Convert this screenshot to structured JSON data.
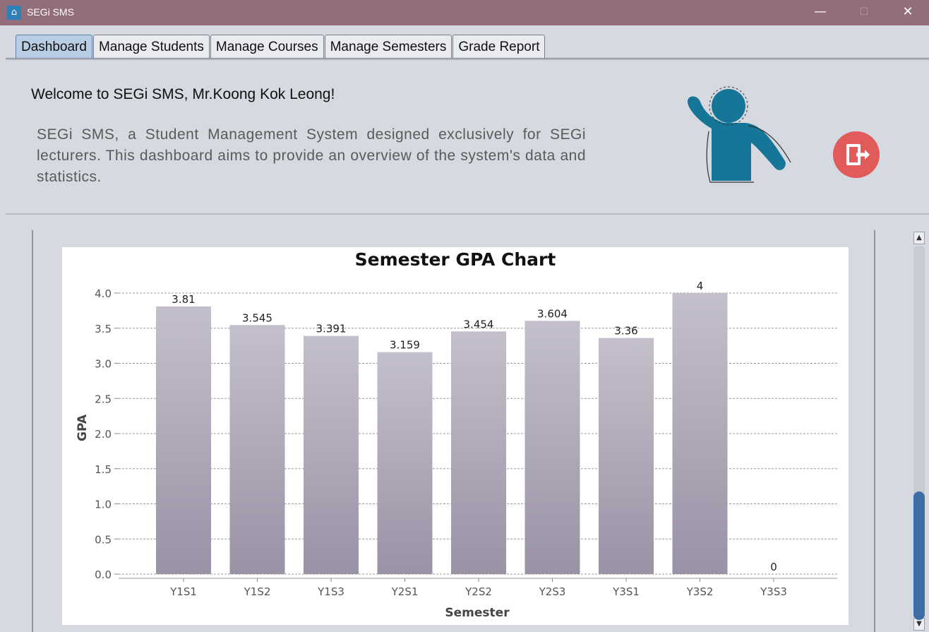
{
  "window": {
    "title": "SEGi SMS",
    "minimize": "—",
    "maximize": "☐",
    "close": "✕"
  },
  "tabs": [
    {
      "label": "Dashboard",
      "active": true
    },
    {
      "label": "Manage Students",
      "active": false
    },
    {
      "label": "Manage Courses",
      "active": false
    },
    {
      "label": "Manage Semesters",
      "active": false
    },
    {
      "label": "Grade Report",
      "active": false
    }
  ],
  "dashboard": {
    "welcome": "Welcome to SEGi SMS, Mr.Koong Kok Leong!",
    "description": "SEGi SMS, a Student Management System designed exclusively for SEGi lecturers. This dashboard aims to provide an overview of the system's data and statistics.",
    "avatar_icon": "user-waving-illustration",
    "logout_icon": "logout-door-icon",
    "logout_color": "#e25b5b"
  },
  "colors": {
    "titlebar": "#916e7a",
    "bar_top": "#c4bfcc",
    "bar_bottom": "#9a92a5"
  },
  "chart_data": {
    "type": "bar",
    "title": "Semester GPA Chart",
    "xlabel": "Semester",
    "ylabel": "GPA",
    "categories": [
      "Y1S1",
      "Y1S2",
      "Y1S3",
      "Y2S1",
      "Y2S2",
      "Y2S3",
      "Y3S1",
      "Y3S2",
      "Y3S3"
    ],
    "values": [
      3.81,
      3.545,
      3.391,
      3.159,
      3.454,
      3.604,
      3.36,
      4,
      0
    ],
    "value_labels": [
      "3.81",
      "3.545",
      "3.391",
      "3.159",
      "3.454",
      "3.604",
      "3.36",
      "4",
      "0"
    ],
    "ylim": [
      0,
      4
    ],
    "yticks": [
      "0.0",
      "0.5",
      "1.0",
      "1.5",
      "2.0",
      "2.5",
      "3.0",
      "3.5",
      "4.0"
    ],
    "grid": true,
    "legend": "none"
  }
}
